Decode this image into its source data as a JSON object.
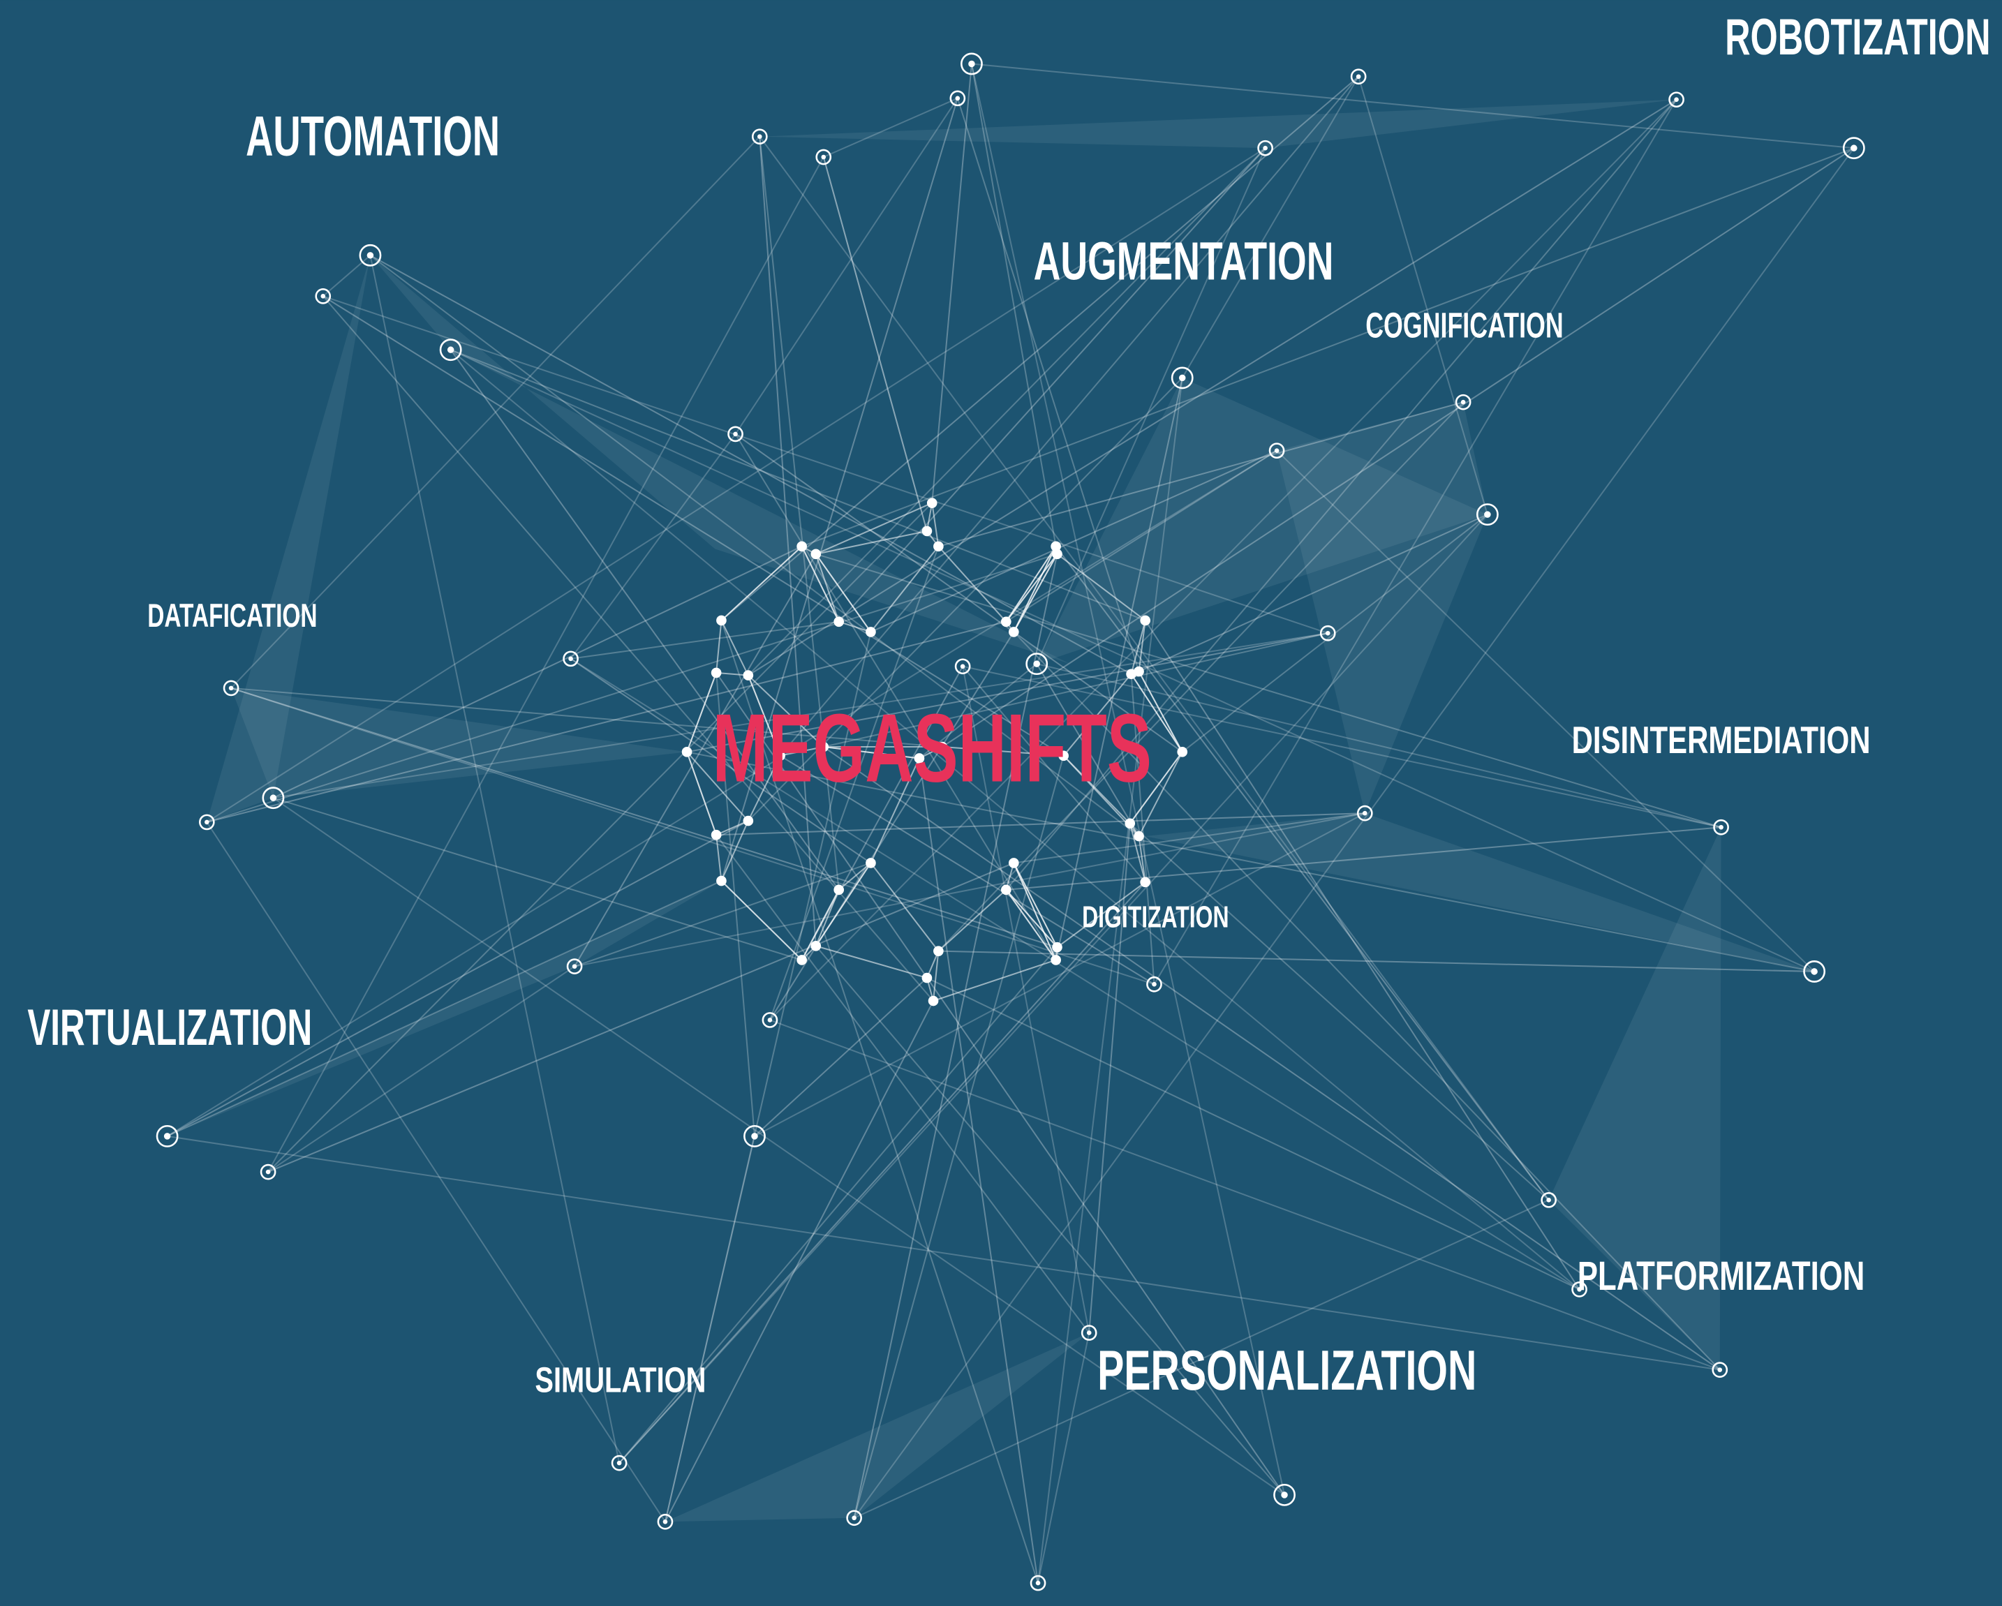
{
  "title": "MEGASHIFTS",
  "labels": [
    "ROBOTIZATION",
    "AUTOMATION",
    "AUGMENTATION",
    "COGNIFICATION",
    "DATAFICATION",
    "DISINTERMEDIATION",
    "DIGITIZATION",
    "VIRTUALIZATION",
    "PLATFORMIZATION",
    "SIMULATION",
    "PERSONALIZATION"
  ]
}
